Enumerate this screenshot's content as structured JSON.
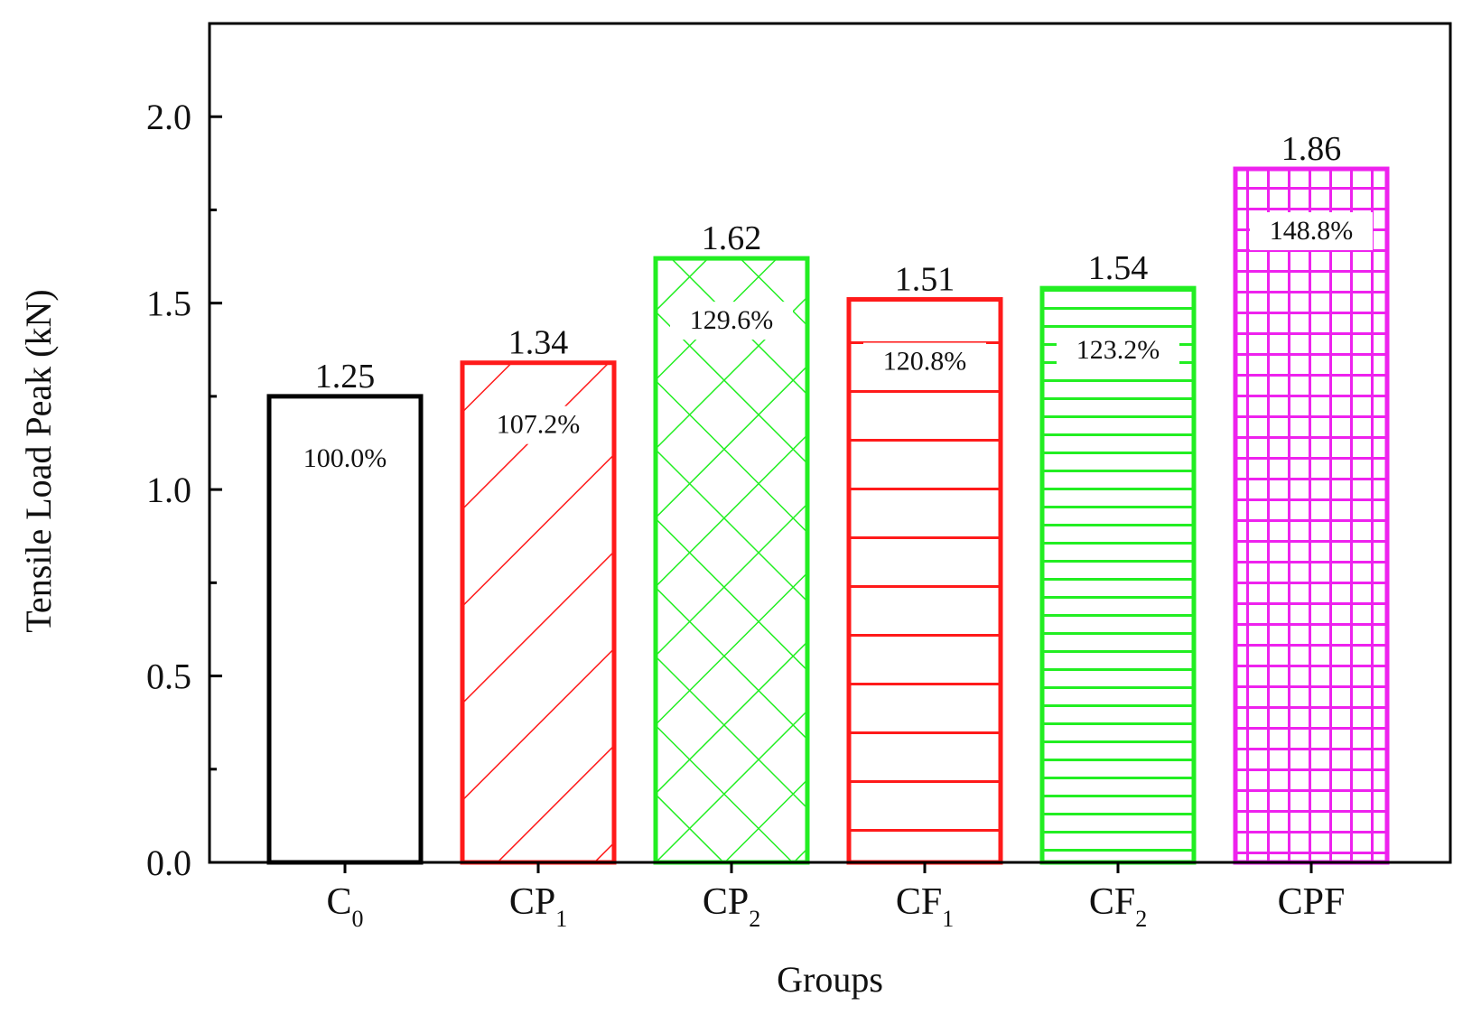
{
  "chart_data": {
    "type": "bar",
    "xlabel": "Groups",
    "ylabel": "Tensile Load Peak (kN)",
    "ylim": [
      0,
      2.25
    ],
    "yticks": [
      0.0,
      0.5,
      1.0,
      1.5,
      2.0
    ],
    "ytick_labels": [
      "0.0",
      "0.5",
      "1.0",
      "1.5",
      "2.0"
    ],
    "grid": false,
    "categories": [
      {
        "main": "C",
        "sub": "0"
      },
      {
        "main": "CP",
        "sub": "1"
      },
      {
        "main": "CP",
        "sub": "2"
      },
      {
        "main": "CF",
        "sub": "1"
      },
      {
        "main": "CF",
        "sub": "2"
      },
      {
        "main": "CPF",
        "sub": ""
      }
    ],
    "values": [
      1.25,
      1.34,
      1.62,
      1.51,
      1.54,
      1.86
    ],
    "value_labels": [
      "1.25",
      "1.34",
      "1.62",
      "1.51",
      "1.54",
      "1.86"
    ],
    "percent_labels": [
      "100.0%",
      "107.2%",
      "129.6%",
      "120.8%",
      "123.2%",
      "148.8%"
    ],
    "bar_colors": [
      "#000000",
      "#ff1a1a",
      "#22ee22",
      "#ff1a1a",
      "#22ee22",
      "#ee22ee"
    ],
    "bar_patterns": [
      "none",
      "diagonal",
      "crosshatch",
      "horizontal-wide",
      "horizontal-dense",
      "grid"
    ]
  }
}
